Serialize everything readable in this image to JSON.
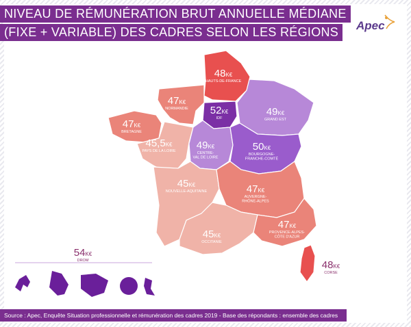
{
  "title_line1": "NIVEAU DE RÉMUNÉRATION BRUT ANNUELLE MÉDIANE",
  "title_line2": "(FIXE + VARIABLE) DES CADRES SELON LES RÉGIONS",
  "logo": "Apec",
  "regions": [
    {
      "id": "hauts-de-france",
      "value": "48",
      "unit": "K€",
      "name": "HAUTS-DE-FRANCE",
      "color": "#e8504f"
    },
    {
      "id": "normandie",
      "value": "47",
      "unit": "K€",
      "name": "NORMANDIE",
      "color": "#ea8479"
    },
    {
      "id": "bretagne",
      "value": "47",
      "unit": "K€",
      "name": "BRETAGNE",
      "color": "#ea8479"
    },
    {
      "id": "idf",
      "value": "52",
      "unit": "K€",
      "name": "IDF",
      "color": "#7b2fa5"
    },
    {
      "id": "grand-est",
      "value": "49",
      "unit": "K€",
      "name": "GRAND EST",
      "color": "#b788d8"
    },
    {
      "id": "pays-de-la-loire",
      "value": "45,5",
      "unit": "K€",
      "name": "PAYS DE LA LOIRE",
      "color": "#f0b3a8"
    },
    {
      "id": "centre-val-de-loire",
      "value": "49",
      "unit": "K€",
      "name_line1": "CENTRE-",
      "name_line2": "VAL DE LOIRE",
      "color": "#b788d8"
    },
    {
      "id": "bourgogne-franche-comte",
      "value": "50",
      "unit": "K€",
      "name_line1": "BOURGOGNE-",
      "name_line2": "FRANCHE-COMTÉ",
      "color": "#9a5ccc"
    },
    {
      "id": "nouvelle-aquitaine",
      "value": "45",
      "unit": "K€",
      "name": "NOUVELLE-AQUITAINE",
      "color": "#f0b3a8"
    },
    {
      "id": "auvergne-rhone-alpes",
      "value": "47",
      "unit": "K€",
      "name_line1": "AUVERGNE-",
      "name_line2": "RHÔNE-ALPES",
      "color": "#ea8479"
    },
    {
      "id": "occitanie",
      "value": "45",
      "unit": "K€",
      "name": "OCCITANIE",
      "color": "#f0b3a8"
    },
    {
      "id": "provence-alpes-cote-d-azur",
      "value": "47",
      "unit": "K€",
      "name_line1": "PROVENCE-ALPES-",
      "name_line2": "CÔTE D'AZUR",
      "color": "#ea8479"
    },
    {
      "id": "corse",
      "value": "48",
      "unit": "K€",
      "name": "CORSE",
      "color": "#e8504f"
    },
    {
      "id": "drom",
      "value": "54",
      "unit": "K€",
      "name": "DROM",
      "color": "#6a1f9a"
    }
  ],
  "source": "Source : Apec, Enquête Situation professionnelle et rémunération des cadres 2019 - Base des répondants : ensemble des cadres"
}
